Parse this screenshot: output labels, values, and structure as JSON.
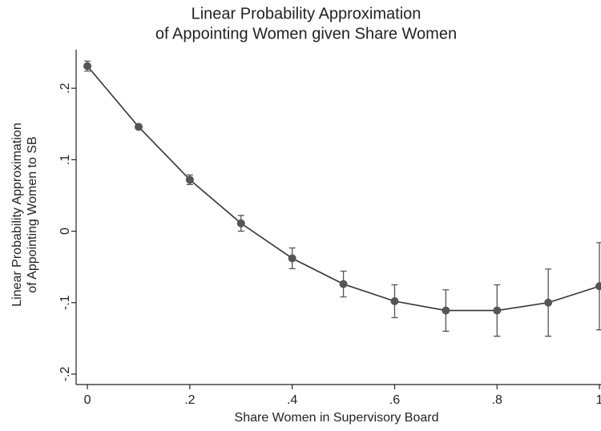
{
  "chart_data": {
    "type": "line",
    "title": [
      "Linear Probability Approximation",
      "of Appointing Women given Share Women"
    ],
    "x_label": "Share Women in Supervisory Board",
    "y_label": [
      "Linear Probability Approximation",
      "of Appointing Women to SB"
    ],
    "x": [
      0,
      0.1,
      0.2,
      0.3,
      0.4,
      0.5,
      0.6,
      0.7,
      0.8,
      0.9,
      1.0
    ],
    "values": [
      0.231,
      0.146,
      0.072,
      0.011,
      -0.038,
      -0.074,
      -0.098,
      -0.111,
      -0.111,
      -0.1,
      -0.077
    ],
    "errors": [
      0.007,
      0.002,
      0.0067,
      0.011,
      0.0145,
      0.018,
      0.023,
      0.029,
      0.036,
      0.047,
      0.061
    ],
    "color": "#555555",
    "line_color": "#333333",
    "xlim": [
      -0.022,
      1.003
    ],
    "ylim": [
      -0.2146,
      0.254
    ],
    "xticks": [
      0,
      {
        "value": 0.2,
        "label": ".2"
      },
      {
        "value": 0.4,
        "label": ".4"
      },
      {
        "value": 0.6,
        "label": ".6"
      },
      {
        "value": 0.8,
        "label": ".8"
      },
      1
    ],
    "yticks": [
      {
        "value": -0.2,
        "label": "-.2"
      },
      {
        "value": -0.1,
        "label": "-.1"
      },
      0,
      {
        "value": 0.1,
        "label": ".1"
      },
      {
        "value": 0.2,
        "label": ".2"
      }
    ]
  }
}
